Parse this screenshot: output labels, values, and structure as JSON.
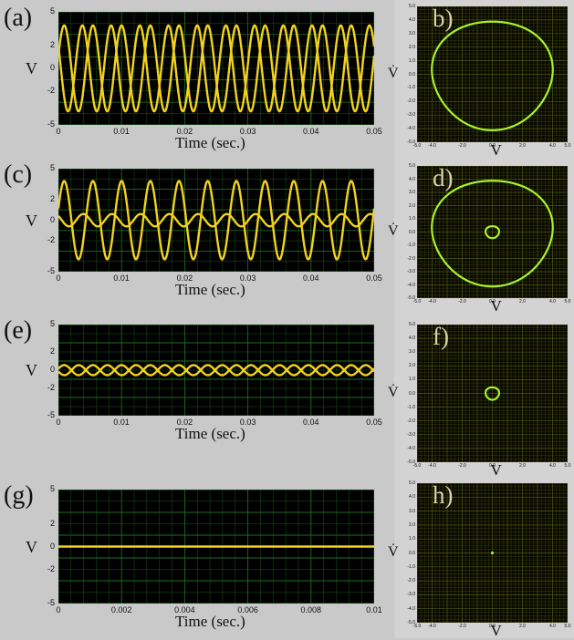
{
  "colors": {
    "plot_bg": "#000000",
    "grid": "#1f6b1f",
    "trace": "#f2d21e",
    "phase": "#a9f22a",
    "phase_bg": "#0a0a00",
    "phase_grid": "#4f5a12"
  },
  "chart_data": [
    {
      "id": "a",
      "type": "line",
      "label": "(a)",
      "ylabel": "V",
      "xlabel": "Time (sec.)",
      "xlim": [
        0,
        0.05
      ],
      "ylim": [
        -5,
        5
      ],
      "xticks": [
        "0",
        "0.01",
        "0.02",
        "0.03",
        "0.04",
        "0.05"
      ],
      "yticks": [
        "5",
        "2",
        "0",
        "-2",
        "-5"
      ],
      "series": [
        {
          "amplitude": 3.8,
          "frequency_hz": 220,
          "phase": 0.3
        },
        {
          "amplitude": 3.8,
          "frequency_hz": 220,
          "phase": 2.6
        }
      ]
    },
    {
      "id": "c",
      "type": "line",
      "label": "(c)",
      "ylabel": "V",
      "xlabel": "Time (sec.)",
      "xlim": [
        0,
        0.05
      ],
      "ylim": [
        -5,
        5
      ],
      "xticks": [
        "0",
        "0.01",
        "0.02",
        "0.03",
        "0.04",
        "0.05"
      ],
      "yticks": [
        "5",
        "2",
        "0",
        "-2",
        "-5"
      ],
      "series": [
        {
          "amplitude": 3.8,
          "frequency_hz": 220,
          "phase": 0.3
        },
        {
          "amplitude": 0.6,
          "frequency_hz": 220,
          "phase": 2.4
        }
      ]
    },
    {
      "id": "e",
      "type": "line",
      "label": "(e)",
      "ylabel": "V",
      "xlabel": "Time (sec.)",
      "xlim": [
        0,
        0.05
      ],
      "ylim": [
        -5,
        5
      ],
      "xticks": [
        "0",
        "0.01",
        "0.02",
        "0.03",
        "0.04",
        "0.05"
      ],
      "yticks": [
        "5",
        "2",
        "0",
        "-2",
        "-5"
      ],
      "series": [
        {
          "amplitude": 0.55,
          "frequency_hz": 220,
          "phase": 0.3
        },
        {
          "amplitude": 0.55,
          "frequency_hz": 220,
          "phase": 3.4
        }
      ]
    },
    {
      "id": "g",
      "type": "line",
      "label": "(g)",
      "ylabel": "V",
      "xlabel": "Time (sec.)",
      "xlim": [
        0,
        0.01
      ],
      "ylim": [
        -5,
        5
      ],
      "xticks": [
        "0",
        "0.002",
        "0.004",
        "0.006",
        "0.008",
        "0.01"
      ],
      "yticks": [
        "5",
        "2",
        "0",
        "-2",
        "-5"
      ],
      "series": [
        {
          "amplitude": 0,
          "frequency_hz": 0,
          "phase": 0
        }
      ]
    },
    {
      "id": "b",
      "type": "scatter",
      "label": "b)",
      "xlabel": "V",
      "ylabel": "V̇",
      "xlim": [
        -5,
        5
      ],
      "ylim": [
        -5,
        5
      ],
      "yticks": [
        "5.0",
        "4.0",
        "3.0",
        "2.0",
        "1.0",
        "0.0",
        "-1.0",
        "-2.0",
        "-3.0",
        "-4.0",
        "-5.0"
      ],
      "xticks": [
        "-5.0",
        "-4.0",
        "-2.0",
        "0.0",
        "2.0",
        "4.0",
        "5.0"
      ],
      "orbits": [
        {
          "radius": 4.0
        }
      ]
    },
    {
      "id": "d",
      "type": "scatter",
      "label": "d)",
      "xlabel": "V",
      "ylabel": "V̇",
      "xlim": [
        -5,
        5
      ],
      "ylim": [
        -5,
        5
      ],
      "yticks": [
        "5.0",
        "4.0",
        "3.0",
        "2.0",
        "1.0",
        "0.0",
        "-1.0",
        "-2.0",
        "-3.0",
        "-4.0",
        "-5.0"
      ],
      "xticks": [
        "-5.0",
        "-4.0",
        "-2.0",
        "0.0",
        "2.0",
        "4.0",
        "5.0"
      ],
      "orbits": [
        {
          "radius": 4.0
        },
        {
          "radius": 0.45
        }
      ]
    },
    {
      "id": "f",
      "type": "scatter",
      "label": "f)",
      "xlabel": "V",
      "ylabel": "V̇",
      "xlim": [
        -5,
        5
      ],
      "ylim": [
        -5,
        5
      ],
      "yticks": [
        "5.0",
        "4.0",
        "3.0",
        "2.0",
        "1.0",
        "0.0",
        "-1.0",
        "-2.0",
        "-3.0",
        "-4.0",
        "-5.0"
      ],
      "xticks": [
        "-5.0",
        "-4.0",
        "-2.0",
        "0.0",
        "2.0",
        "4.0",
        "5.0"
      ],
      "orbits": [
        {
          "radius": 0.45
        }
      ]
    },
    {
      "id": "h",
      "type": "scatter",
      "label": "h)",
      "xlabel": "V",
      "ylabel": "V̇",
      "xlim": [
        -5,
        5
      ],
      "ylim": [
        -5,
        5
      ],
      "yticks": [
        "5.0",
        "4.0",
        "3.0",
        "2.0",
        "1.0",
        "0.0",
        "-1.0",
        "-2.0",
        "-3.0",
        "-4.0",
        "-5.0"
      ],
      "xticks": [
        "-5.0",
        "-4.0",
        "-2.0",
        "0.0",
        "2.0",
        "4.0",
        "5.0"
      ],
      "orbits": [
        {
          "radius": 0.05
        }
      ]
    }
  ]
}
